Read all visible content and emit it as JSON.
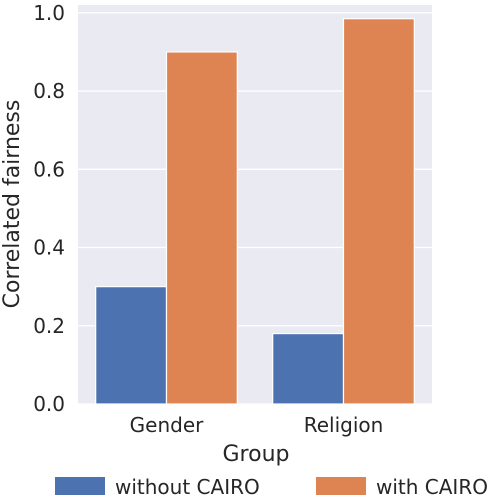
{
  "chart_data": {
    "type": "bar",
    "categories": [
      "Gender",
      "Religion"
    ],
    "series": [
      {
        "name": "without CAIRO",
        "values": [
          0.3,
          0.18
        ],
        "color": "#4c72b0"
      },
      {
        "name": "with CAIRO",
        "values": [
          0.9,
          0.985
        ],
        "color": "#dd8452"
      }
    ],
    "xlabel": "Group",
    "ylabel": "Correlated fairness",
    "ylim": [
      0,
      1.02
    ],
    "yticks": [
      0.0,
      0.2,
      0.4,
      0.6,
      0.8,
      1.0
    ],
    "ytick_labels": [
      "0.0",
      "0.2",
      "0.4",
      "0.6",
      "0.8",
      "1.0"
    ],
    "grid": true,
    "background_color": "#eaeaf2",
    "legend_position": "bottom"
  }
}
